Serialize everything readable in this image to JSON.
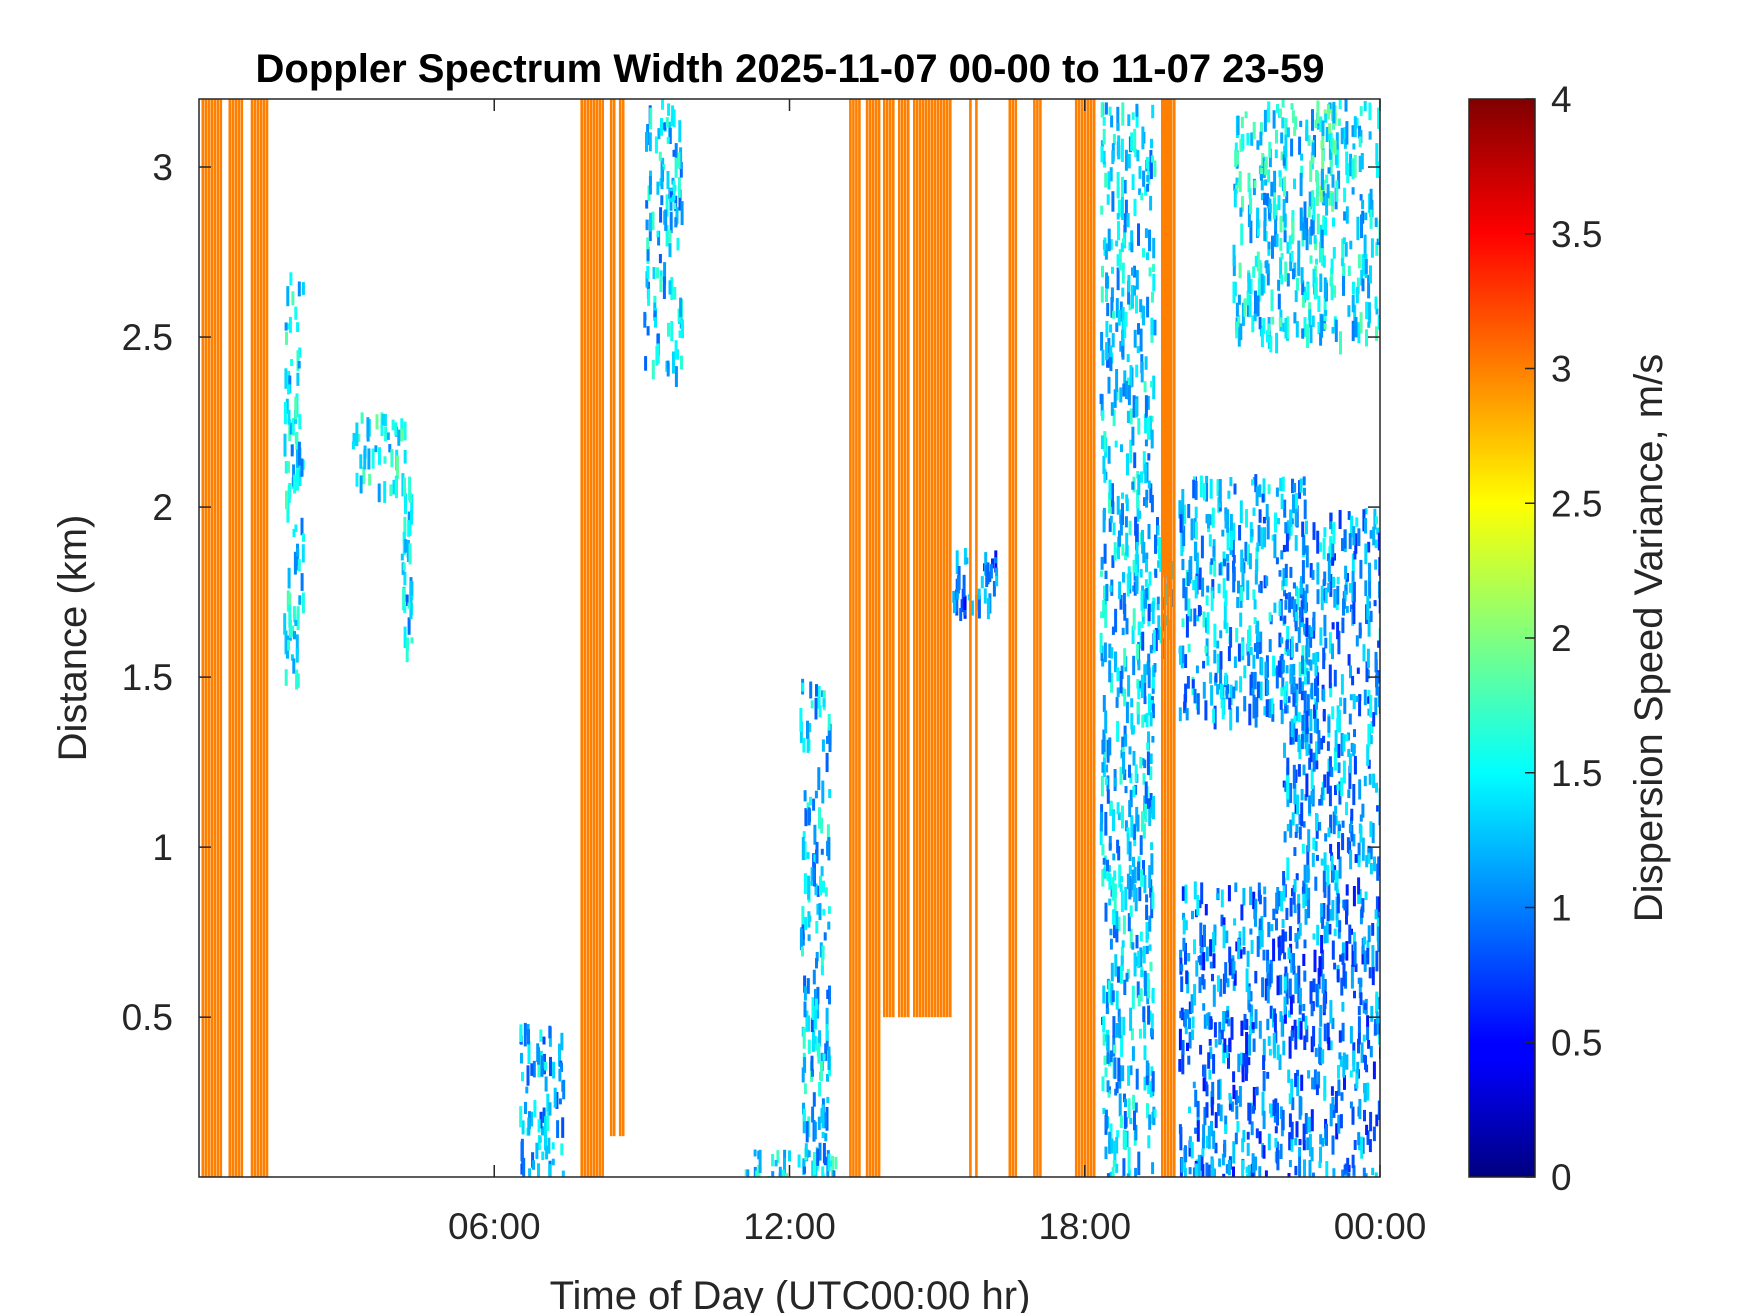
{
  "chart_data": {
    "type": "heatmap",
    "title": "Doppler Spectrum Width 2025-11-07 00-00 to 11-07 23-59",
    "xlabel": "Time of Day (UTC00:00 hr)",
    "ylabel": "Distance (km)",
    "colorbar_label": "Dispersion Speed Variance, m/s",
    "x_unit": "hours",
    "xlim": [
      0,
      24
    ],
    "ylim": [
      0.03,
      3.2
    ],
    "clim": [
      0,
      4
    ],
    "colormap": "jet",
    "x_ticks": [
      {
        "value": 6,
        "label": "06:00"
      },
      {
        "value": 12,
        "label": "12:00"
      },
      {
        "value": 18,
        "label": "18:00"
      },
      {
        "value": 24,
        "label": "00:00"
      }
    ],
    "y_ticks": [
      {
        "value": 0.5,
        "label": "0.5"
      },
      {
        "value": 1,
        "label": "1"
      },
      {
        "value": 1.5,
        "label": "1.5"
      },
      {
        "value": 2,
        "label": "2"
      },
      {
        "value": 2.5,
        "label": "2.5"
      },
      {
        "value": 3,
        "label": "3"
      }
    ],
    "colorbar_ticks": [
      {
        "value": 0,
        "label": "0"
      },
      {
        "value": 0.5,
        "label": "0.5"
      },
      {
        "value": 1,
        "label": "1"
      },
      {
        "value": 1.5,
        "label": "1.5"
      },
      {
        "value": 2,
        "label": "2"
      },
      {
        "value": 2.5,
        "label": "2.5"
      },
      {
        "value": 3,
        "label": "3"
      },
      {
        "value": 3.5,
        "label": "3.5"
      },
      {
        "value": 4,
        "label": "4"
      }
    ],
    "saturated_bands": [
      {
        "x": [
          0.05,
          0.45
        ],
        "y": [
          0.03,
          3.2
        ],
        "value": 3
      },
      {
        "x": [
          0.6,
          0.85
        ],
        "y": [
          0.03,
          3.2
        ],
        "value": 3
      },
      {
        "x": [
          1.05,
          1.4
        ],
        "y": [
          0.03,
          3.2
        ],
        "value": 3
      },
      {
        "x": [
          7.75,
          8.2
        ],
        "y": [
          0.03,
          3.2
        ],
        "value": 3
      },
      {
        "x": [
          8.35,
          8.65
        ],
        "y": [
          0.15,
          3.2
        ],
        "value": 3
      },
      {
        "x": [
          13.15,
          13.4
        ],
        "y": [
          0.03,
          3.2
        ],
        "value": 3
      },
      {
        "x": [
          13.55,
          13.8
        ],
        "y": [
          0.03,
          3.2
        ],
        "value": 3
      },
      {
        "x": [
          13.9,
          15.3
        ],
        "y": [
          0.5,
          3.2
        ],
        "value": 3
      },
      {
        "x": [
          15.65,
          15.8
        ],
        "y": [
          0.03,
          3.2
        ],
        "value": 3
      },
      {
        "x": [
          16.45,
          16.6
        ],
        "y": [
          0.03,
          3.2
        ],
        "value": 3
      },
      {
        "x": [
          16.95,
          17.1
        ],
        "y": [
          0.03,
          3.2
        ],
        "value": 3
      },
      {
        "x": [
          17.8,
          18.2
        ],
        "y": [
          0.03,
          3.2
        ],
        "value": 3
      },
      {
        "x": [
          19.55,
          19.85
        ],
        "y": [
          0.03,
          3.2
        ],
        "value": 3
      },
      {
        "x": [
          19.6,
          19.75
        ],
        "y": [
          1.8,
          3.2
        ],
        "value": 3
      }
    ],
    "cloud_regions": [
      {
        "x": [
          1.7,
          2.1
        ],
        "y": [
          1.5,
          2.7
        ],
        "value": 1.4
      },
      {
        "x": [
          3.1,
          4.2
        ],
        "y": [
          2.05,
          2.28
        ],
        "value": 1.5
      },
      {
        "x": [
          4.1,
          4.3
        ],
        "y": [
          1.6,
          2.1
        ],
        "value": 1.3
      },
      {
        "x": [
          6.5,
          7.4
        ],
        "y": [
          0.03,
          0.5
        ],
        "value": 1.2
      },
      {
        "x": [
          9.0,
          9.8
        ],
        "y": [
          2.4,
          3.2
        ],
        "value": 1.3
      },
      {
        "x": [
          11.0,
          13.0
        ],
        "y": [
          0.03,
          0.12
        ],
        "value": 1.4
      },
      {
        "x": [
          12.2,
          12.8
        ],
        "y": [
          0.03,
          1.5
        ],
        "value": 1.3
      },
      {
        "x": [
          15.3,
          16.2
        ],
        "y": [
          1.7,
          1.9
        ],
        "value": 0.9
      },
      {
        "x": [
          18.3,
          19.4
        ],
        "y": [
          0.03,
          3.2
        ],
        "value": 1.3
      },
      {
        "x": [
          19.0,
          19.8
        ],
        "y": [
          1.6,
          2.0
        ],
        "value": 1.2
      },
      {
        "x": [
          19.9,
          24.0
        ],
        "y": [
          0.03,
          0.9
        ],
        "value": 1.0
      },
      {
        "x": [
          19.9,
          22.5
        ],
        "y": [
          1.4,
          2.1
        ],
        "value": 1.2
      },
      {
        "x": [
          21.0,
          24.0
        ],
        "y": [
          2.5,
          3.2
        ],
        "value": 1.4
      },
      {
        "x": [
          22.0,
          24.0
        ],
        "y": [
          0.9,
          2.0
        ],
        "value": 1.1
      },
      {
        "x": [
          22.6,
          23.1
        ],
        "y": [
          2.9,
          3.2
        ],
        "value": 1.6
      }
    ]
  }
}
